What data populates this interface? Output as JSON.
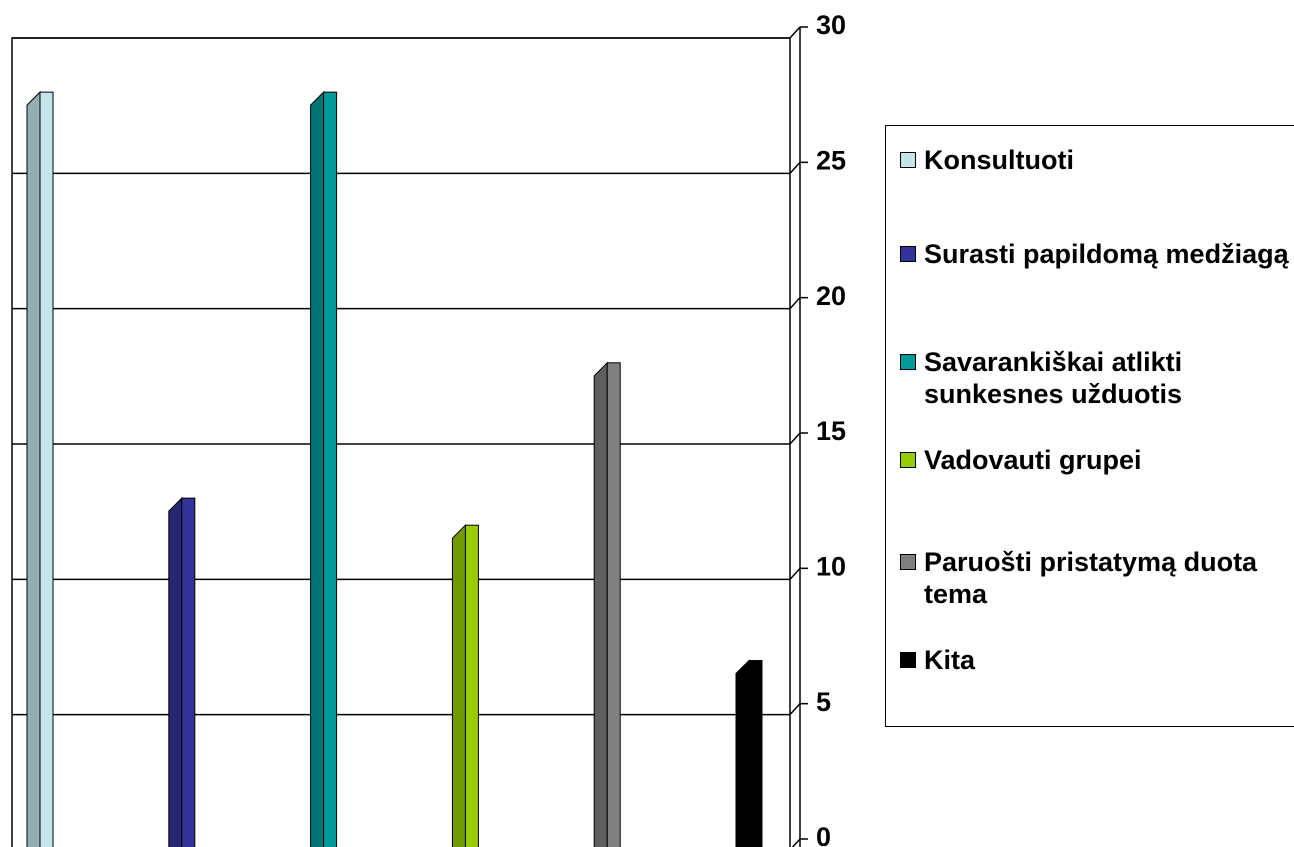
{
  "chart_data": {
    "type": "bar",
    "series": [
      {
        "name": "Konsultuoti",
        "color": "#c4e6ea",
        "values": [
          28
        ]
      },
      {
        "name": "Surasti papildomą medžiagą",
        "color": "#333399",
        "values": [
          13
        ]
      },
      {
        "name": "Savarankiškai atlikti sunkesnes užduotis",
        "color": "#009999",
        "values": [
          28
        ]
      },
      {
        "name": "Vadovauti grupei",
        "color": "#99cc00",
        "values": [
          12
        ]
      },
      {
        "name": "Paruošti pristatymą duota tema",
        "color": "#808080",
        "values": [
          18
        ]
      },
      {
        "name": "Kita",
        "color": "#000000",
        "values": [
          7
        ]
      }
    ],
    "ylim": [
      0,
      30
    ],
    "yticks": [
      0,
      5,
      10,
      15,
      20,
      25,
      30
    ],
    "grid": true
  }
}
